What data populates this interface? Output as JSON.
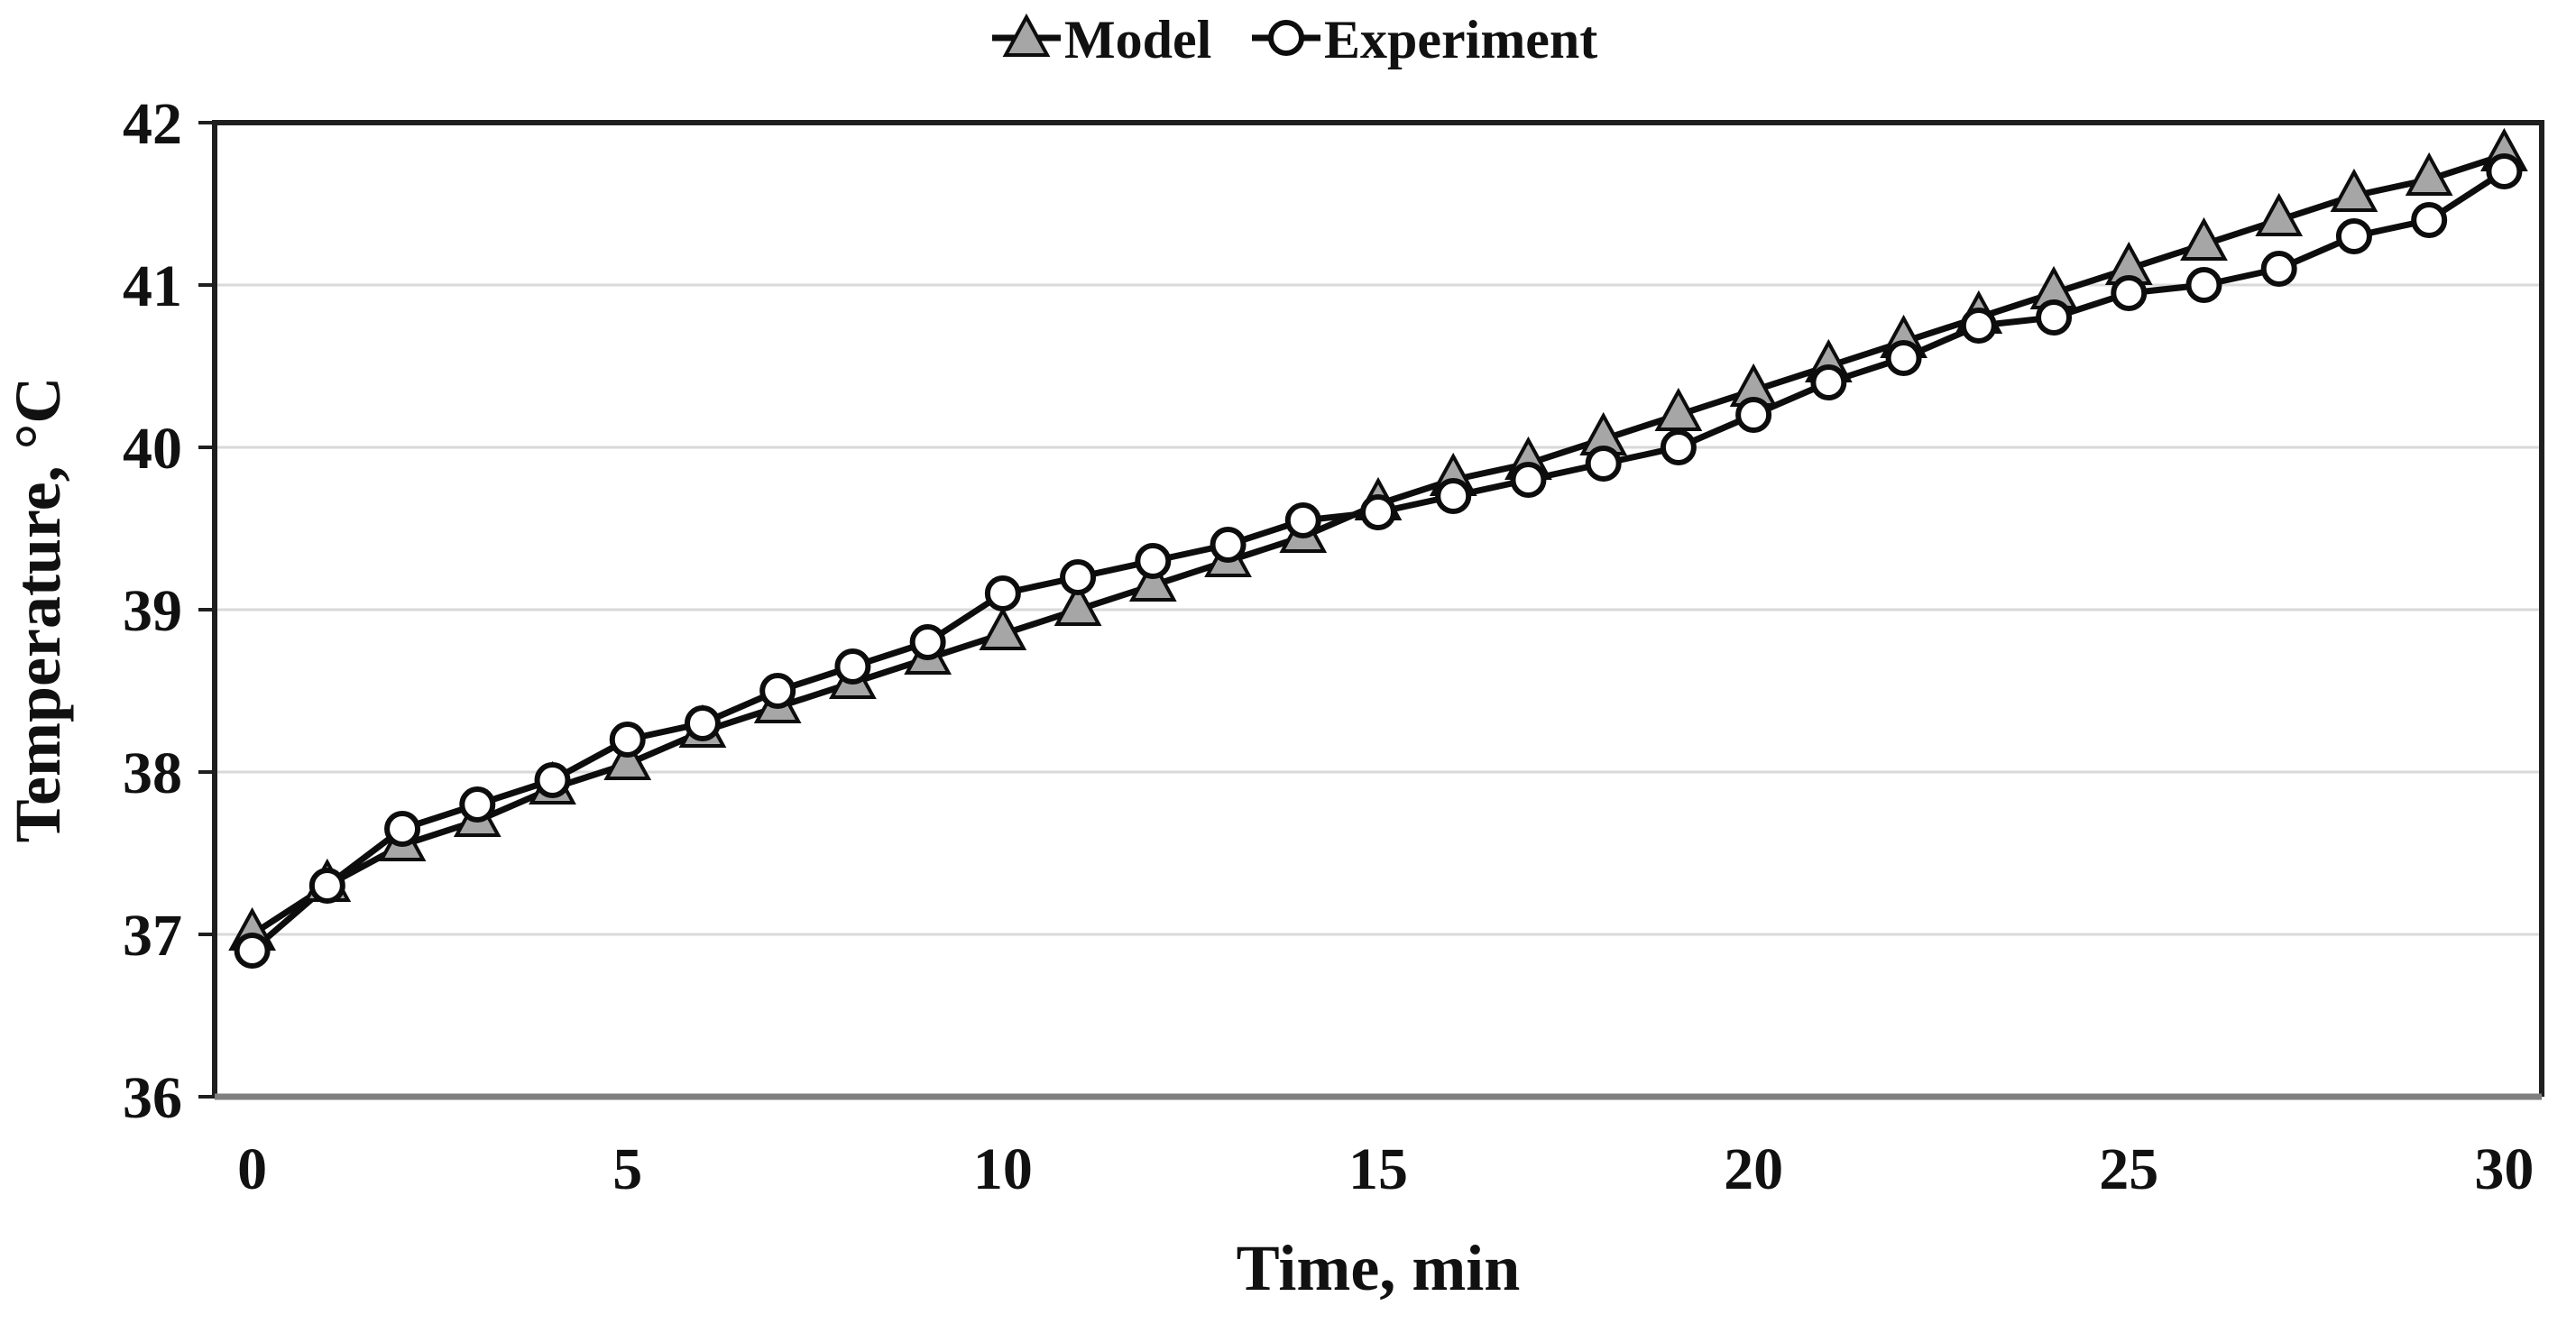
{
  "chart_data": {
    "type": "line",
    "title": "",
    "xlabel": "Time, min",
    "ylabel": "Temperature, °C",
    "x": [
      0,
      1,
      2,
      3,
      4,
      5,
      6,
      7,
      8,
      9,
      10,
      11,
      12,
      13,
      14,
      15,
      16,
      17,
      18,
      19,
      20,
      21,
      22,
      23,
      24,
      25,
      26,
      27,
      28,
      29,
      30
    ],
    "series": [
      {
        "name": "Model",
        "marker": "triangle",
        "marker_fill": "#a6a6a6",
        "line_color": "#0d0d0d",
        "values": [
          37.0,
          37.3,
          37.55,
          37.7,
          37.9,
          38.05,
          38.25,
          38.4,
          38.55,
          38.7,
          38.85,
          39.0,
          39.15,
          39.3,
          39.45,
          39.65,
          39.8,
          39.9,
          40.05,
          40.2,
          40.35,
          40.5,
          40.65,
          40.8,
          40.95,
          41.1,
          41.25,
          41.4,
          41.55,
          41.65,
          41.8
        ]
      },
      {
        "name": "Experiment",
        "marker": "circle",
        "marker_fill": "#ffffff",
        "line_color": "#0d0d0d",
        "values": [
          36.9,
          37.3,
          37.65,
          37.8,
          37.95,
          38.2,
          38.3,
          38.5,
          38.65,
          38.8,
          39.1,
          39.2,
          39.3,
          39.4,
          39.55,
          39.6,
          39.7,
          39.8,
          39.9,
          40.0,
          40.2,
          40.4,
          40.55,
          40.75,
          40.8,
          40.95,
          41.0,
          41.1,
          41.3,
          41.4,
          41.7
        ]
      }
    ],
    "xticks": [
      0,
      5,
      10,
      15,
      20,
      25,
      30
    ],
    "yticks": [
      36,
      37,
      38,
      39,
      40,
      41,
      42
    ],
    "xlim": [
      -0.5,
      30.5
    ],
    "ylim": [
      36,
      42
    ],
    "grid": "horizontal",
    "legend_position": "top-center",
    "colors": {
      "gridline": "#d9d9d9",
      "axis_border": "#1f1f1f",
      "bottom_axis": "#7f7f7f",
      "text": "#111111"
    }
  }
}
